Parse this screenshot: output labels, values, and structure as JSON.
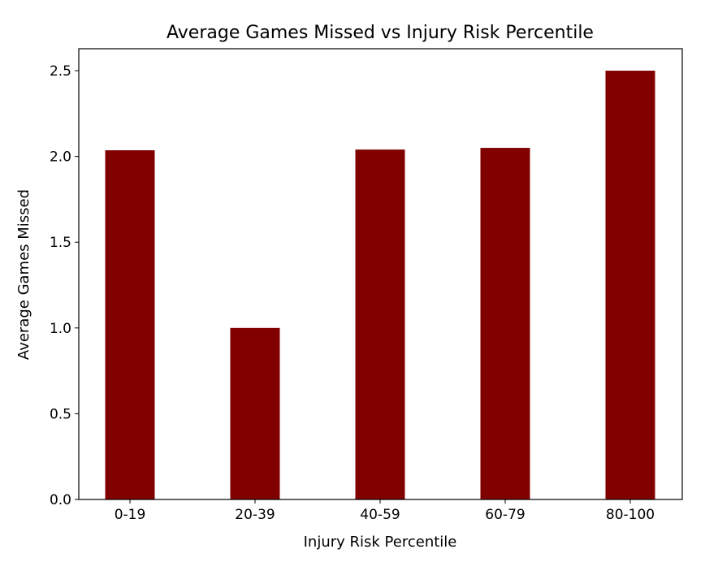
{
  "chart_data": {
    "type": "bar",
    "title": "Average Games Missed vs Injury Risk Percentile",
    "xlabel": "Injury Risk Percentile",
    "ylabel": "Average Games Missed",
    "categories": [
      "0-19",
      "20-39",
      "40-59",
      "60-79",
      "80-100"
    ],
    "values": [
      2.036,
      1.0,
      2.04,
      2.05,
      2.5
    ],
    "ylim": [
      0,
      2.628
    ],
    "yticks": [
      "0.0",
      "0.5",
      "1.0",
      "1.5",
      "2.0",
      "2.5"
    ],
    "bar_color": "#800000",
    "grid": false
  }
}
